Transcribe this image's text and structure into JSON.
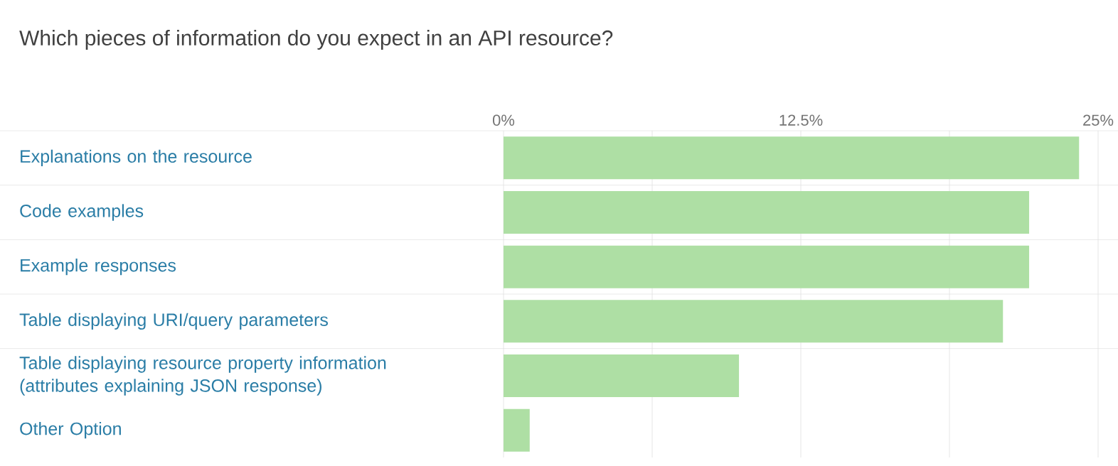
{
  "chart_data": {
    "type": "bar",
    "orientation": "horizontal",
    "title": "Which pieces of information do you expect in an API resource?",
    "categories": [
      "Explanations on the resource",
      "Code examples",
      "Example responses",
      "Table displaying URI/query parameters",
      "Table displaying resource property information (attributes explaining JSON response)",
      "Other Option"
    ],
    "values": [
      24.2,
      22.1,
      22.1,
      21.0,
      9.9,
      1.1
    ],
    "color": "#aedfa4",
    "xlim": [
      0,
      25
    ],
    "xticks": [
      {
        "value": 0,
        "label": "0%"
      },
      {
        "value": 6.25,
        "label": null
      },
      {
        "value": 12.5,
        "label": "12.5%"
      },
      {
        "value": 18.75,
        "label": null
      },
      {
        "value": 25,
        "label": "25%"
      }
    ],
    "grid": "x"
  }
}
